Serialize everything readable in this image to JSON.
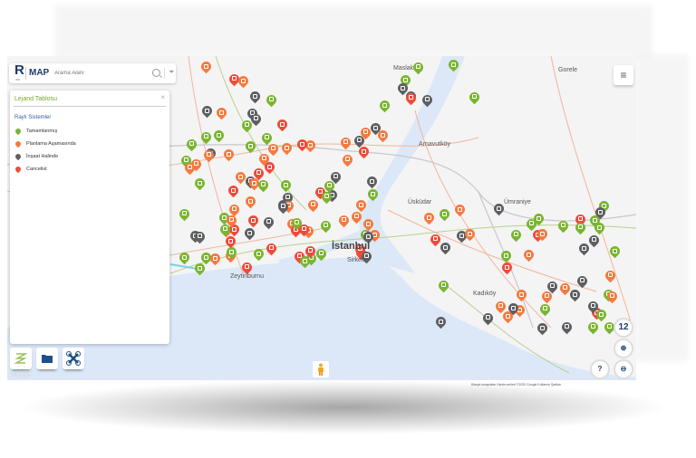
{
  "app": {
    "logo_letter": "R",
    "logo_sub": "IBB",
    "logo_text": "MAP"
  },
  "search": {
    "placeholder": "Arama Alanı",
    "value": ""
  },
  "legend": {
    "title": "Lejand Tablosu",
    "close_label": "×",
    "section": "Raylı Sistemler",
    "items": [
      {
        "label": "Tamamlanmış",
        "color": "#7ab530"
      },
      {
        "label": "Planlama Aşamasında",
        "color": "#f47a3f"
      },
      {
        "label": "İnşaat Halinde",
        "color": "#5d5f63"
      },
      {
        "label": "Cancelist",
        "color": "#ee4b3b"
      }
    ]
  },
  "map": {
    "zoom_level": "12",
    "help_label": "?",
    "google_label": "Google",
    "attribution": "Klavye kısayolları  Harita verileri ©2020 Google   Kullanım Şartları",
    "place_labels": [
      "Maslak",
      "Gorele",
      "Arnavutköy",
      "Üsküdar",
      "Ümraniye",
      "İstanbul",
      "Sirkeci",
      "Zeytinburnu",
      "Kadıköy"
    ],
    "colors": {
      "completed": "#7ab530",
      "planned": "#f47a3f",
      "construction": "#5d5f63",
      "cancelled": "#ee4b3b",
      "water": "#dce8f8",
      "land": "#f4f4f4"
    }
  },
  "toolbar": {
    "icons": [
      "route-icon",
      "folder-icon",
      "drone-icon"
    ]
  }
}
